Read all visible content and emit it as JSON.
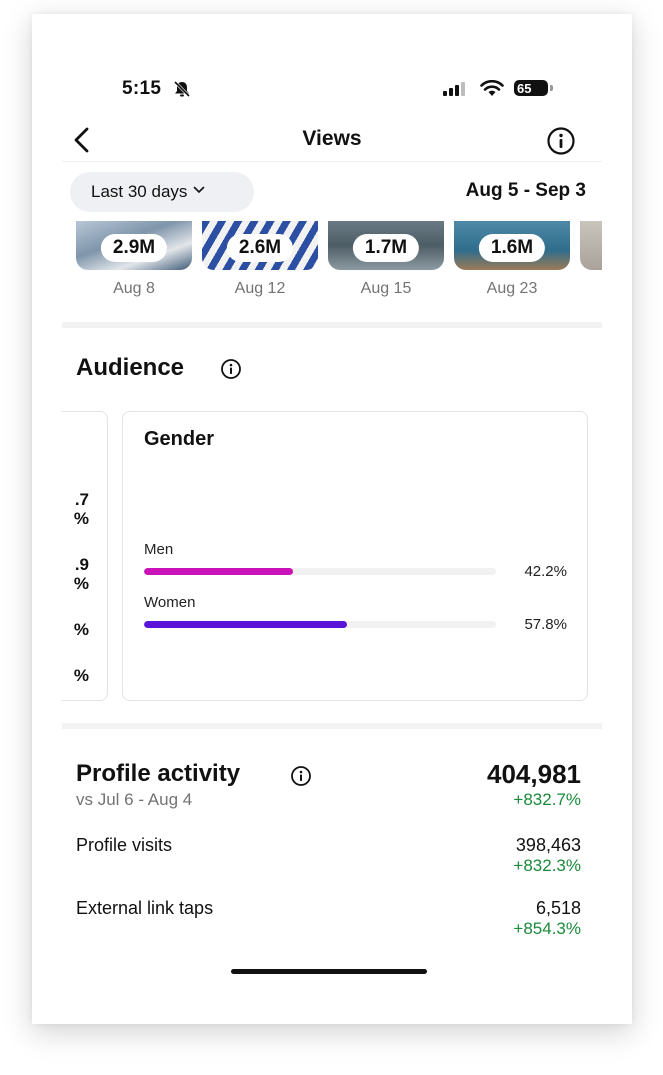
{
  "status_bar": {
    "time": "5:15",
    "battery": "65"
  },
  "nav": {
    "title": "Views"
  },
  "filter": {
    "range_label": "Last 30 days",
    "date_range": "Aug 5 - Sep 3"
  },
  "thumbnails": [
    {
      "views": "2.9M",
      "date": "Aug 8"
    },
    {
      "views": "2.6M",
      "date": "Aug 12"
    },
    {
      "views": "1.7M",
      "date": "Aug 15"
    },
    {
      "views": "1.6M",
      "date": "Aug 23"
    }
  ],
  "audience": {
    "title": "Audience",
    "partial_card_values": [
      ".7\n%",
      ".9\n%",
      "%",
      "%"
    ],
    "gender": {
      "title": "Gender",
      "rows": [
        {
          "label": "Men",
          "value": "42.2%",
          "fraction": 0.422,
          "color": "#c913b9"
        },
        {
          "label": "Women",
          "value": "57.8%",
          "fraction": 0.578,
          "color": "#5a14d8"
        }
      ]
    }
  },
  "profile_activity": {
    "title": "Profile activity",
    "total": "404,981",
    "compare_label": "vs Jul 6 - Aug 4",
    "change": "+832.7%",
    "rows": [
      {
        "label": "Profile visits",
        "value": "398,463",
        "change": "+832.3%"
      },
      {
        "label": "External link taps",
        "value": "6,518",
        "change": "+854.3%"
      }
    ]
  }
}
